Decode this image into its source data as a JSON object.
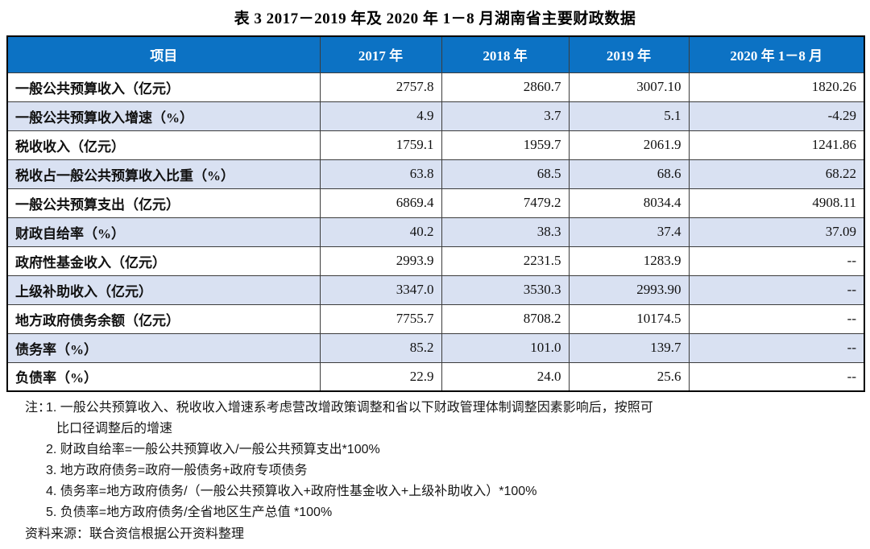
{
  "title": "表 3  2017－2019 年及 2020 年 1－8 月湖南省主要财政数据",
  "table": {
    "columns": [
      "项目",
      "2017 年",
      "2018 年",
      "2019 年",
      "2020 年 1－8 月"
    ],
    "rows": [
      {
        "label": "一般公共预算收入（亿元）",
        "values": [
          "2757.8",
          "2860.7",
          "3007.10",
          "1820.26"
        ]
      },
      {
        "label": "一般公共预算收入增速（%）",
        "values": [
          "4.9",
          "3.7",
          "5.1",
          "-4.29"
        ]
      },
      {
        "label": "税收收入（亿元）",
        "values": [
          "1759.1",
          "1959.7",
          "2061.9",
          "1241.86"
        ]
      },
      {
        "label": "税收占一般公共预算收入比重（%）",
        "values": [
          "63.8",
          "68.5",
          "68.6",
          "68.22"
        ]
      },
      {
        "label": "一般公共预算支出（亿元）",
        "values": [
          "6869.4",
          "7479.2",
          "8034.4",
          "4908.11"
        ]
      },
      {
        "label": "财政自给率（%）",
        "values": [
          "40.2",
          "38.3",
          "37.4",
          "37.09"
        ]
      },
      {
        "label": "政府性基金收入（亿元）",
        "values": [
          "2993.9",
          "2231.5",
          "1283.9",
          "--"
        ]
      },
      {
        "label": "上级补助收入（亿元）",
        "values": [
          "3347.0",
          "3530.3",
          "2993.90",
          "--"
        ]
      },
      {
        "label": "地方政府债务余额（亿元）",
        "values": [
          "7755.7",
          "8708.2",
          "10174.5",
          "--"
        ]
      },
      {
        "label": "债务率（%）",
        "values": [
          "85.2",
          "101.0",
          "139.7",
          "--"
        ]
      },
      {
        "label": "负债率（%）",
        "values": [
          "22.9",
          "24.0",
          "25.6",
          "--"
        ]
      }
    ]
  },
  "notes": {
    "prefix": "注：",
    "items": [
      {
        "num": "1.",
        "text": "一般公共预算收入、税收收入增速系考虑营改增政策调整和省以下财政管理体制调整因素影响后，按照可",
        "text2": "比口径调整后的增速"
      },
      {
        "num": "2.",
        "text": "财政自给率=一般公共预算收入/一般公共预算支出*100%"
      },
      {
        "num": "3.",
        "text": "地方政府债务=政府一般债务+政府专项债务"
      },
      {
        "num": "4.",
        "text": "债务率=地方政府债务/（一般公共预算收入+政府性基金收入+上级补助收入）*100%"
      },
      {
        "num": "5.",
        "text": "负债率=地方政府债务/全省地区生产总值 *100%"
      }
    ]
  },
  "source": "资料来源：联合资信根据公开资料整理",
  "colors": {
    "header_bg": "#0c72c4",
    "header_text": "#ffffff",
    "row_alt_bg": "#d9e1f2",
    "border": "#3c3c3c",
    "outer_border": "#000000",
    "text": "#111111"
  }
}
